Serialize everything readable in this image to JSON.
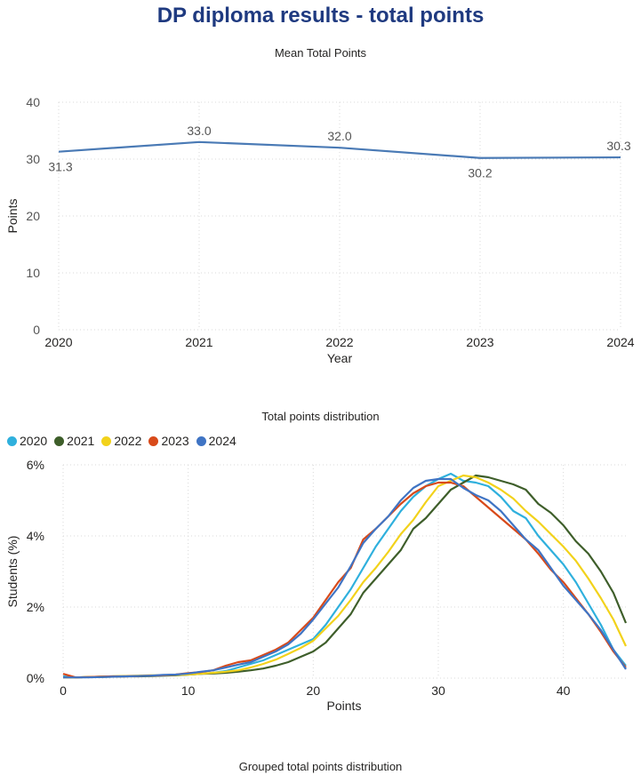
{
  "page_title": "DP diploma results - total points",
  "chart_data": [
    {
      "type": "line",
      "title": "Mean Total Points",
      "xlabel": "Year",
      "ylabel": "Points",
      "x": [
        "2020",
        "2021",
        "2022",
        "2023",
        "2024"
      ],
      "series": [
        {
          "values": [
            31.3,
            33.0,
            32.0,
            30.2,
            30.3
          ],
          "color": "#4a7ab5"
        }
      ],
      "data_labels": [
        "31.3",
        "33.0",
        "32.0",
        "30.2",
        "30.3"
      ],
      "ylim": [
        0,
        40
      ],
      "yticks": [
        "0",
        "10",
        "20",
        "30",
        "40"
      ],
      "grid": true
    },
    {
      "type": "line",
      "title": "Total points distribution",
      "xlabel": "Points",
      "ylabel": "Students (%)",
      "xlim": [
        0,
        45
      ],
      "xticks": [
        "0",
        "10",
        "20",
        "30",
        "40"
      ],
      "ylim": [
        0,
        6
      ],
      "yticks": [
        "0%",
        "2%",
        "4%",
        "6%"
      ],
      "grid": true,
      "legend_position": "top-left",
      "x": [
        0,
        1,
        2,
        3,
        4,
        5,
        6,
        7,
        8,
        9,
        10,
        11,
        12,
        13,
        14,
        15,
        16,
        17,
        18,
        19,
        20,
        21,
        22,
        23,
        24,
        25,
        26,
        27,
        28,
        29,
        30,
        31,
        32,
        33,
        34,
        35,
        36,
        37,
        38,
        39,
        40,
        41,
        42,
        43,
        44,
        45
      ],
      "series": [
        {
          "name": "2020",
          "color": "#2fb0dd",
          "values": [
            0.05,
            0.02,
            0.03,
            0.04,
            0.05,
            0.05,
            0.06,
            0.06,
            0.07,
            0.08,
            0.1,
            0.12,
            0.15,
            0.2,
            0.3,
            0.4,
            0.5,
            0.65,
            0.8,
            0.95,
            1.1,
            1.5,
            2.0,
            2.5,
            3.1,
            3.7,
            4.2,
            4.7,
            5.1,
            5.4,
            5.6,
            5.75,
            5.55,
            5.5,
            5.4,
            5.1,
            4.7,
            4.5,
            4.0,
            3.6,
            3.2,
            2.7,
            2.1,
            1.5,
            0.8,
            0.35
          ]
        },
        {
          "name": "2021",
          "color": "#3e5e2a",
          "values": [
            0.02,
            0.02,
            0.03,
            0.03,
            0.04,
            0.05,
            0.05,
            0.06,
            0.07,
            0.08,
            0.1,
            0.12,
            0.13,
            0.15,
            0.18,
            0.22,
            0.27,
            0.35,
            0.45,
            0.6,
            0.75,
            1.0,
            1.4,
            1.8,
            2.4,
            2.8,
            3.2,
            3.6,
            4.2,
            4.5,
            4.9,
            5.3,
            5.5,
            5.7,
            5.65,
            5.55,
            5.45,
            5.3,
            4.9,
            4.65,
            4.3,
            3.85,
            3.5,
            3.0,
            2.4,
            1.55
          ]
        },
        {
          "name": "2022",
          "color": "#f2d21b",
          "values": [
            0.02,
            0.02,
            0.03,
            0.04,
            0.05,
            0.06,
            0.07,
            0.08,
            0.08,
            0.09,
            0.1,
            0.12,
            0.15,
            0.18,
            0.22,
            0.3,
            0.4,
            0.52,
            0.68,
            0.85,
            1.05,
            1.4,
            1.75,
            2.2,
            2.7,
            3.1,
            3.55,
            4.05,
            4.45,
            4.95,
            5.4,
            5.55,
            5.7,
            5.65,
            5.5,
            5.3,
            5.05,
            4.7,
            4.4,
            4.05,
            3.7,
            3.3,
            2.8,
            2.25,
            1.65,
            0.9
          ]
        },
        {
          "name": "2023",
          "color": "#d84a1a",
          "values": [
            0.12,
            0.02,
            0.03,
            0.04,
            0.05,
            0.05,
            0.06,
            0.07,
            0.08,
            0.1,
            0.14,
            0.17,
            0.22,
            0.35,
            0.45,
            0.5,
            0.65,
            0.8,
            1.0,
            1.35,
            1.7,
            2.2,
            2.7,
            3.1,
            3.9,
            4.2,
            4.55,
            4.9,
            5.2,
            5.4,
            5.5,
            5.5,
            5.4,
            5.1,
            4.8,
            4.5,
            4.2,
            3.9,
            3.5,
            3.05,
            2.7,
            2.25,
            1.8,
            1.3,
            0.75,
            0.3
          ]
        },
        {
          "name": "2024",
          "color": "#3f74c4",
          "values": [
            0.02,
            0.02,
            0.02,
            0.03,
            0.04,
            0.05,
            0.06,
            0.07,
            0.09,
            0.1,
            0.13,
            0.18,
            0.22,
            0.3,
            0.38,
            0.45,
            0.6,
            0.75,
            0.95,
            1.25,
            1.65,
            2.1,
            2.55,
            3.15,
            3.8,
            4.2,
            4.55,
            5.0,
            5.35,
            5.55,
            5.6,
            5.6,
            5.35,
            5.15,
            5.0,
            4.7,
            4.3,
            3.9,
            3.6,
            3.1,
            2.6,
            2.2,
            1.8,
            1.35,
            0.8,
            0.25
          ]
        }
      ]
    },
    {
      "title": "Grouped total points distribution"
    }
  ]
}
